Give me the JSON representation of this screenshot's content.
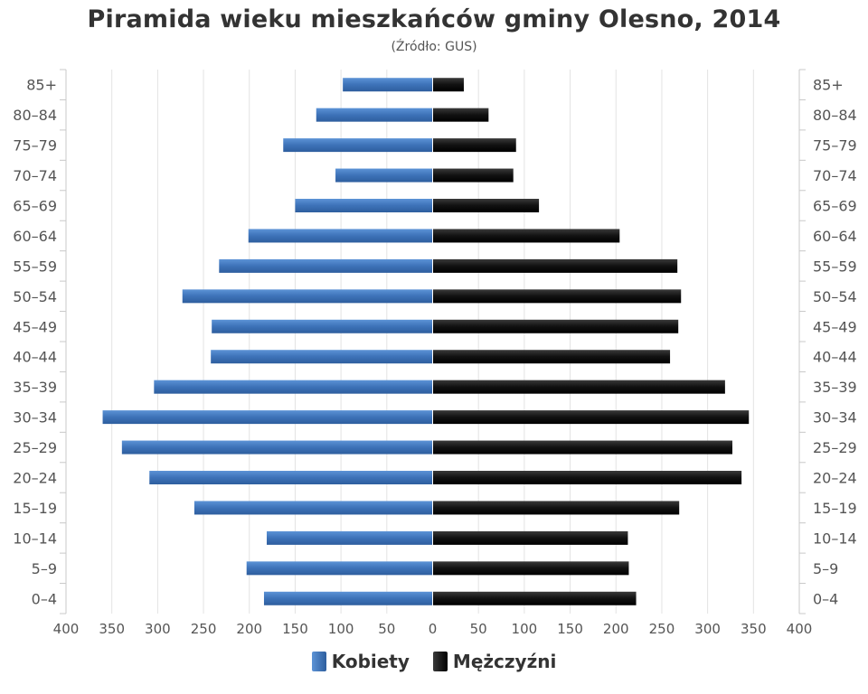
{
  "chart_data": {
    "type": "bar",
    "orientation": "horizontal",
    "title": "Piramida wieku mieszkańców gminy Olesno, 2014",
    "subtitle": "(Źródło: GUS)",
    "categories": [
      "85+",
      "80–84",
      "75–79",
      "70–74",
      "65–69",
      "60–64",
      "55–59",
      "50–54",
      "45–49",
      "40–44",
      "35–39",
      "30–34",
      "25–29",
      "20–24",
      "15–19",
      "10–14",
      "5–9",
      "0–4"
    ],
    "x_ticks": [
      "400",
      "350",
      "300",
      "250",
      "200",
      "150",
      "100",
      "50",
      "0",
      "50",
      "100",
      "150",
      "200",
      "250",
      "300",
      "350",
      "400"
    ],
    "xlim": [
      -400,
      400
    ],
    "grid": true,
    "legend_position": "bottom-center",
    "series": [
      {
        "name": "Kobiety",
        "color": "#4a7fc4",
        "values": [
          98,
          127,
          163,
          106,
          150,
          201,
          233,
          273,
          241,
          242,
          304,
          360,
          339,
          309,
          260,
          181,
          203,
          184
        ]
      },
      {
        "name": "Mężczyźni",
        "color": "#1a1a1a",
        "values": [
          34,
          61,
          91,
          88,
          116,
          204,
          267,
          271,
          268,
          259,
          319,
          345,
          327,
          337,
          269,
          213,
          214,
          222
        ]
      }
    ]
  }
}
